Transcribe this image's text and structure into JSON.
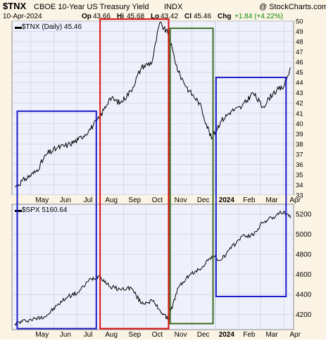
{
  "header": {
    "symbol": "$TNX",
    "name": "CBOE 10-Year US Treasury Yield",
    "exchange": "INDX",
    "watermark": "@ StockCharts.com",
    "date": "10-Apr-2024",
    "quote": {
      "op_label": "Op",
      "op": "43.66",
      "hi_label": "Hi",
      "hi": "45.68",
      "lo_label": "Lo",
      "lo": "43.42",
      "cl_label": "Cl",
      "cl": "45.46",
      "chg_label": "Chg",
      "chg": "+1.84 (+4.22%)"
    }
  },
  "colors": {
    "background": "#fbf3e4",
    "plot_bg": "#eef1fb",
    "grid": "#c9cfe8",
    "series": "#000000",
    "blue_box": "#1c1cc8",
    "red_box": "#e01010",
    "green_box": "#3a6b1e",
    "chg_positive": "#0a8a0a"
  },
  "chart_data": [
    {
      "type": "line",
      "legend": "$TNX (Daily) 45.46",
      "ylim": [
        33,
        50
      ],
      "yticks": [
        33,
        34,
        35,
        36,
        37,
        38,
        39,
        40,
        41,
        42,
        43,
        44,
        45,
        46,
        47,
        48,
        49,
        50
      ],
      "xticks": [
        "May",
        "Jun",
        "Jul",
        "Aug",
        "Sep",
        "Oct",
        "Nov",
        "Dec",
        "2024",
        "Feb",
        "Mar",
        "Apr"
      ],
      "x": [
        "2023-04-10",
        "2023-04-24",
        "2023-05-08",
        "2023-05-22",
        "2023-06-05",
        "2023-06-19",
        "2023-07-03",
        "2023-07-17",
        "2023-07-31",
        "2023-08-14",
        "2023-08-28",
        "2023-09-11",
        "2023-09-25",
        "2023-10-09",
        "2023-10-19",
        "2023-10-30",
        "2023-11-13",
        "2023-11-27",
        "2023-12-11",
        "2023-12-27",
        "2024-01-08",
        "2024-01-22",
        "2024-02-05",
        "2024-02-20",
        "2024-03-04",
        "2024-03-18",
        "2024-04-01",
        "2024-04-10"
      ],
      "y": [
        33.8,
        34.6,
        35.3,
        37.0,
        37.6,
        37.9,
        38.4,
        39.3,
        40.5,
        42.5,
        42.0,
        43.2,
        45.5,
        46.0,
        49.8,
        48.8,
        45.0,
        43.2,
        42.0,
        38.5,
        40.2,
        41.2,
        41.6,
        43.0,
        41.6,
        43.0,
        43.6,
        45.46
      ]
    },
    {
      "type": "line",
      "legend": "$SPX 5160.64",
      "ylim": [
        4050,
        5300
      ],
      "yticks": [
        4200,
        4400,
        4600,
        4800,
        5000,
        5200
      ],
      "xticks": [
        "May",
        "Jun",
        "Jul",
        "Aug",
        "Sep",
        "Oct",
        "Nov",
        "Dec",
        "2024",
        "Feb",
        "Mar",
        "Apr"
      ],
      "x": [
        "2023-04-10",
        "2023-04-24",
        "2023-05-08",
        "2023-05-22",
        "2023-06-05",
        "2023-06-19",
        "2023-07-03",
        "2023-07-17",
        "2023-07-31",
        "2023-08-14",
        "2023-08-28",
        "2023-09-11",
        "2023-09-25",
        "2023-10-09",
        "2023-10-19",
        "2023-10-30",
        "2023-11-13",
        "2023-11-27",
        "2023-12-11",
        "2023-12-27",
        "2024-01-08",
        "2024-01-22",
        "2024-02-05",
        "2024-02-20",
        "2024-03-04",
        "2024-03-18",
        "2024-04-01",
        "2024-04-10"
      ],
      "y": [
        4110,
        4140,
        4160,
        4190,
        4290,
        4380,
        4420,
        4540,
        4590,
        4480,
        4450,
        4470,
        4310,
        4340,
        4250,
        4150,
        4470,
        4590,
        4650,
        4780,
        4740,
        4860,
        4980,
        4990,
        5120,
        5170,
        5230,
        5160.64
      ]
    }
  ],
  "annotations": [
    {
      "name": "blue-box-may-jul",
      "color": "blue",
      "from": "2023-04-13",
      "to": "2023-07-27",
      "top": 41.2,
      "bottom": 4060
    },
    {
      "name": "red-box-aug-oct",
      "color": "red",
      "from": "2023-08-01",
      "to": "2023-10-31",
      "top": 50.2,
      "bottom": 4060
    },
    {
      "name": "green-box-nov-dec",
      "color": "green",
      "from": "2023-11-02",
      "to": "2023-12-29",
      "top": 49.3,
      "bottom": 4110
    },
    {
      "name": "blue-box-2024",
      "color": "blue",
      "from": "2024-01-02",
      "to": "2024-04-04",
      "top": 44.5,
      "bottom": 4380
    }
  ]
}
